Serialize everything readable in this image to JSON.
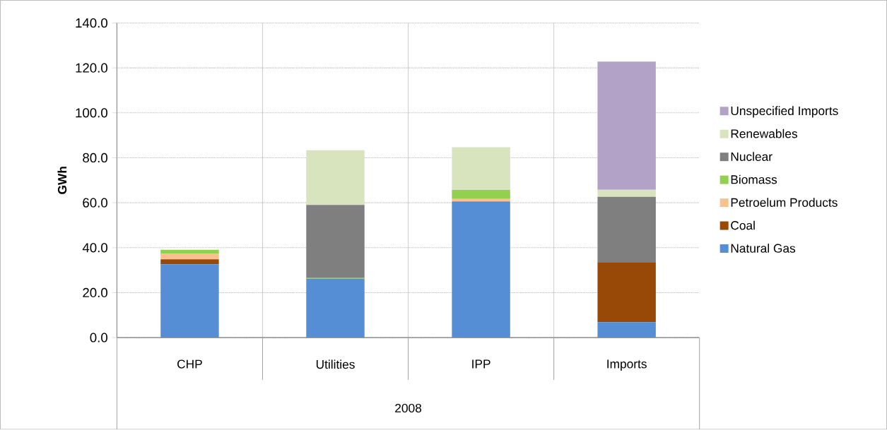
{
  "chart_data": {
    "type": "bar",
    "stacked": true,
    "categories": [
      "CHP",
      "Utilities",
      "IPP",
      "Imports"
    ],
    "xlabel": "2008",
    "ylabel": "GWh",
    "ylim": [
      0,
      140
    ],
    "yticks": [
      {
        "value": 0,
        "label": "0.0"
      },
      {
        "value": 20,
        "label": "20.0"
      },
      {
        "value": 40,
        "label": "40.0"
      },
      {
        "value": 60,
        "label": "60.0"
      },
      {
        "value": 80,
        "label": "80.0"
      },
      {
        "value": 100,
        "label": "100.0"
      },
      {
        "value": 120,
        "label": "120.0"
      },
      {
        "value": 140,
        "label": "140.0"
      }
    ],
    "grid": true,
    "legend": "right",
    "series": [
      {
        "name": "Natural Gas",
        "color": "#558ed5",
        "values": [
          32.6,
          26.2,
          60.6,
          6.9
        ]
      },
      {
        "name": "Coal",
        "color": "#984807",
        "values": [
          2.2,
          null,
          null,
          26.7
        ]
      },
      {
        "name": "Petroelum Products",
        "color": "#fac090",
        "values": [
          2.5,
          null,
          1.1,
          null
        ]
      },
      {
        "name": "Biomass",
        "color": "#92d050",
        "values": [
          1.8,
          0.3,
          4.0,
          null
        ]
      },
      {
        "name": "Nuclear",
        "color": "#7f7f7f",
        "values": [
          null,
          32.5,
          null,
          29.0
        ]
      },
      {
        "name": "Renewables",
        "color": "#d7e4bd",
        "values": [
          null,
          24.4,
          19.0,
          3.2
        ]
      },
      {
        "name": "Unspecified Imports",
        "color": "#b3a2c7",
        "values": [
          null,
          null,
          null,
          57.0
        ]
      }
    ]
  }
}
